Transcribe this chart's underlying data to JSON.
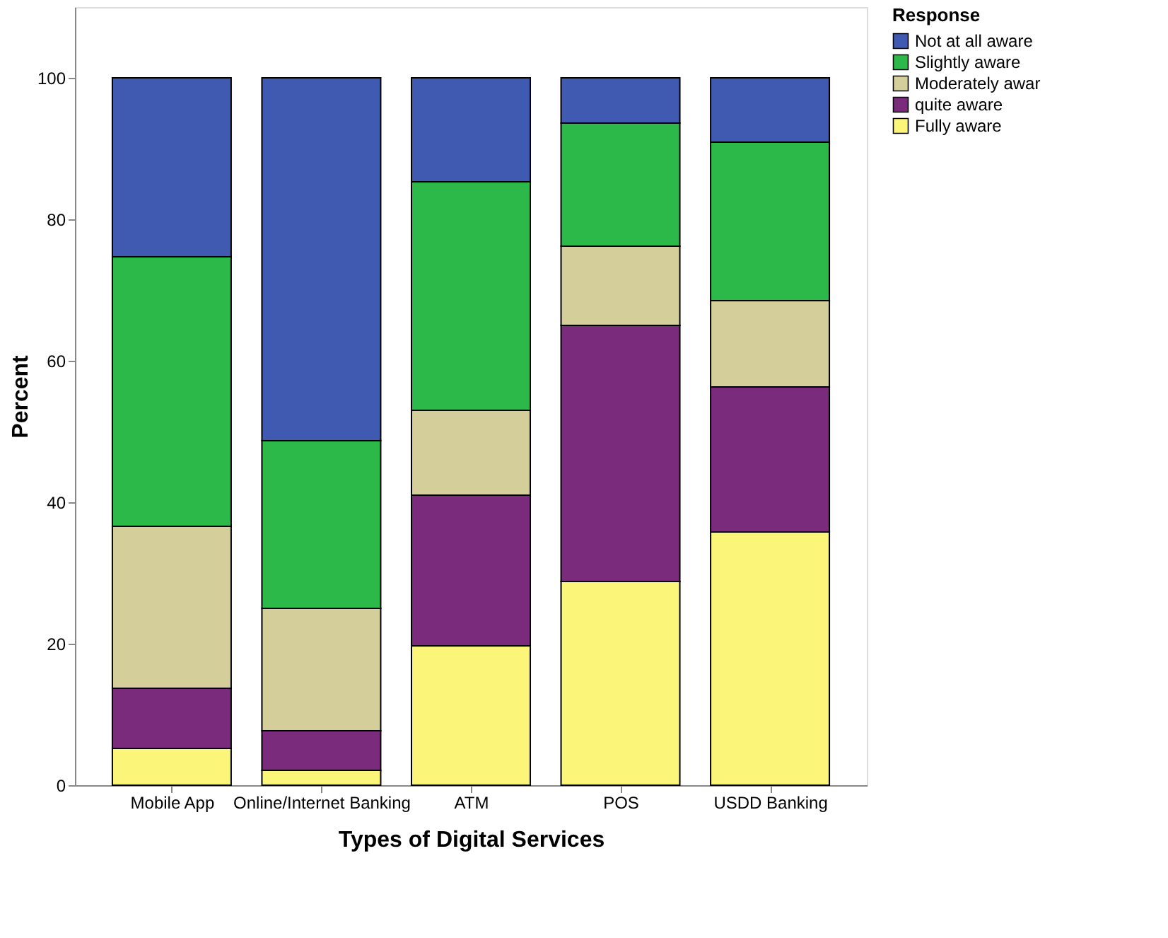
{
  "chart_data": {
    "type": "bar",
    "stacked": true,
    "xlabel": "Types of Digital Services",
    "ylabel": "Percent",
    "legend_title": "Response",
    "legend": "top right",
    "categories": [
      "Mobile App",
      "Online/Internet Banking",
      "ATM",
      "POS",
      "USDD Banking"
    ],
    "series": [
      {
        "name": "Fully aware",
        "color": "#fbf57a",
        "values": [
          5.2,
          2.1,
          19.7,
          28.8,
          35.8
        ]
      },
      {
        "name": "quite aware",
        "color": "#7b2b7b",
        "values": [
          8.5,
          5.6,
          21.3,
          36.2,
          20.5
        ]
      },
      {
        "name": "Moderately awar",
        "color": "#d4cf9a",
        "values": [
          22.9,
          17.3,
          12.0,
          11.2,
          12.2
        ]
      },
      {
        "name": "Slightly aware",
        "color": "#2db84a",
        "values": [
          38.1,
          23.7,
          32.3,
          17.4,
          22.4
        ]
      },
      {
        "name": "Not at all aware",
        "color": "#3f5ab0",
        "values": [
          25.3,
          51.3,
          14.7,
          6.4,
          9.1
        ]
      }
    ],
    "ylim": [
      0,
      110
    ],
    "yticks": [
      0,
      20,
      40,
      60,
      80,
      100
    ],
    "grid": false
  }
}
